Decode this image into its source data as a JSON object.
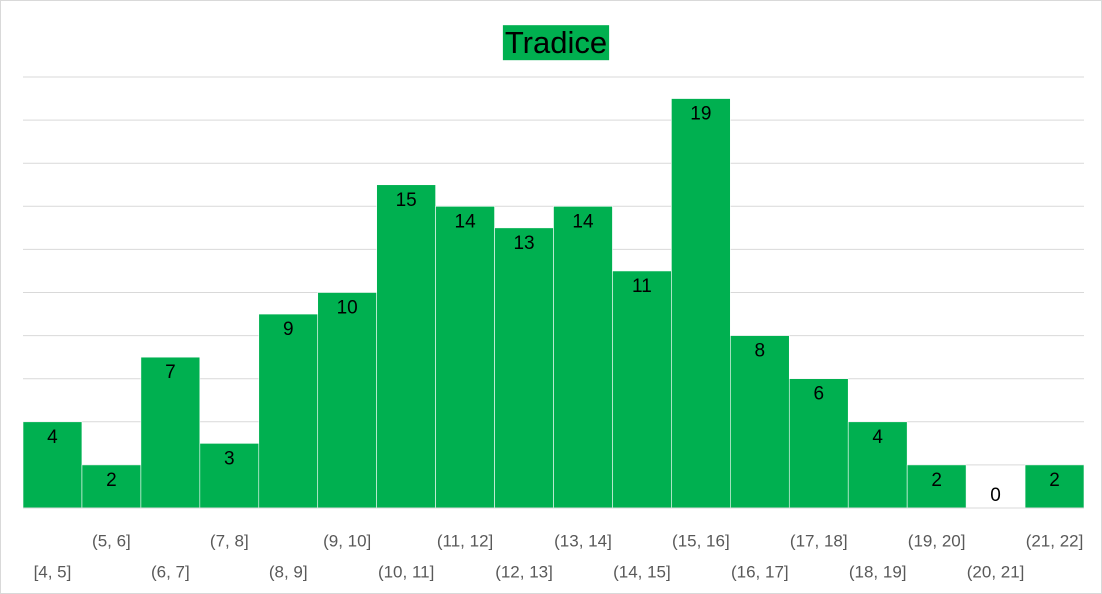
{
  "chart_data": {
    "type": "bar",
    "title": "Tradice",
    "categories": [
      "[4, 5]",
      "(5, 6]",
      "(6, 7]",
      "(7, 8]",
      "(8, 9]",
      "(9, 10]",
      "(10, 11]",
      "(11, 12]",
      "(12, 13]",
      "(13, 14]",
      "(14, 15]",
      "(15, 16]",
      "(16, 17]",
      "(17, 18]",
      "(18, 19]",
      "(19, 20]",
      "(20, 21]",
      "(21, 22]"
    ],
    "values": [
      4,
      2,
      7,
      3,
      9,
      10,
      15,
      14,
      13,
      14,
      11,
      19,
      8,
      6,
      4,
      2,
      0,
      2
    ],
    "color": "#00b050",
    "ylim": [
      0,
      20
    ],
    "yticks": [
      0,
      2,
      4,
      6,
      8,
      10,
      12,
      14,
      16,
      18,
      20
    ],
    "grid": true
  }
}
